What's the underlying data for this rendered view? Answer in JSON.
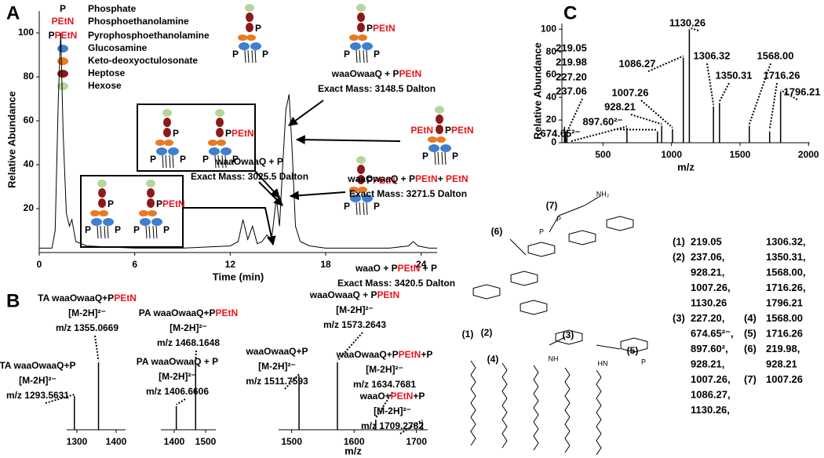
{
  "panel_labels": [
    "A",
    "B",
    "C"
  ],
  "legend": {
    "items": [
      {
        "symbol": [
          {
            "text": "P"
          }
        ],
        "name": "Phosphate"
      },
      {
        "symbol": [
          {
            "text": "PEtN",
            "color": "#e8141e"
          }
        ],
        "name": "Phosphoethanolamine"
      },
      {
        "symbol": [
          {
            "text": "P"
          },
          {
            "text": "PEtN",
            "color": "#e8141e"
          }
        ],
        "name": "Pyrophosphoethanolamine"
      },
      {
        "color": "#3f7fd0",
        "name": "Glucosamine"
      },
      {
        "color": "#e87a20",
        "name": "Keto-deoxyoctulosonate"
      },
      {
        "color": "#8b1a1a",
        "name": "Heptose"
      },
      {
        "color": "#b5d59a",
        "name": "Hexose"
      }
    ]
  },
  "chart_data": [
    {
      "type": "line",
      "color": "#000000",
      "x": [
        0,
        0.8,
        1.0,
        1.2,
        1.35,
        1.5,
        1.7,
        1.9,
        2.05,
        2.3,
        3,
        6,
        9,
        12,
        12.5,
        12.8,
        13.1,
        13.4,
        13.7,
        14,
        14.3,
        14.6,
        14.9,
        15.1,
        15.3,
        15.5,
        15.7,
        15.9,
        16.1,
        16.4,
        17,
        18,
        20,
        22,
        23.2,
        23.5,
        23.8,
        24.5,
        25
      ],
      "values": [
        2,
        2,
        10,
        70,
        100,
        55,
        18,
        12,
        15,
        5,
        3,
        2,
        2,
        3,
        5,
        15,
        6,
        12,
        4,
        5,
        8,
        6,
        25,
        12,
        40,
        65,
        72,
        45,
        12,
        5,
        3,
        2,
        2,
        2,
        3,
        5,
        3,
        2,
        2
      ],
      "xlim": [
        0,
        25
      ],
      "ylim": [
        0,
        110
      ],
      "xticks": [
        0,
        6,
        12,
        18,
        24
      ],
      "yticks": [
        20,
        40,
        60,
        80,
        100
      ],
      "xlabel": "Time (min)",
      "ylabel": "Relative Abundance",
      "annotations": [
        {
          "lines": [
            [
              {
                "text": "waaOwaaQ + P"
              }
            ],
            [
              {
                "text": "Exact Mass: 3025.5 Dalton"
              }
            ]
          ]
        },
        {
          "lines": [
            [
              {
                "text": "waaOwaaQ + P"
              },
              {
                "text": "PEtN",
                "color": "#e8141e"
              }
            ],
            [
              {
                "text": "Exact Mass: 3148.5 Dalton"
              }
            ]
          ]
        },
        {
          "lines": [
            [
              {
                "text": "waaOwaaQ + P"
              },
              {
                "text": "PEtN",
                "color": "#e8141e"
              },
              {
                "text": "+ "
              },
              {
                "text": "PEtN",
                "color": "#e8141e"
              }
            ],
            [
              {
                "text": "Exact Mass: 3271.5 Dalton"
              }
            ]
          ]
        },
        {
          "lines": [
            [
              {
                "text": "waaO + P"
              },
              {
                "text": "PEtN",
                "color": "#e8141e"
              },
              {
                "text": " + P"
              }
            ],
            [
              {
                "text": "Exact Mass: 3420.5 Dalton"
              }
            ]
          ]
        }
      ]
    },
    {
      "type": "spectrum",
      "color": "#000000",
      "x": [
        1293.5631,
        1355.0669
      ],
      "values": [
        50,
        100
      ],
      "xlim": [
        1274,
        1424
      ],
      "xticks": [
        1300,
        1400
      ],
      "annotations": [
        {
          "lines": [
            [
              {
                "text": "TA waaOwaaQ+P"
              }
            ],
            [
              {
                "text": "[M-2H]²⁻"
              }
            ],
            [
              {
                "text": "m/z 1293.5631"
              }
            ]
          ]
        },
        {
          "lines": [
            [
              {
                "text": "TA waaOwaaQ+P"
              },
              {
                "text": "PEtN",
                "color": "#e8141e"
              }
            ],
            [
              {
                "text": "[M-2H]²⁻"
              }
            ],
            [
              {
                "text": "m/z 1355.0669"
              }
            ]
          ]
        }
      ]
    },
    {
      "type": "spectrum",
      "color": "#000000",
      "x": [
        1406.6606,
        1468.1648
      ],
      "values": [
        35,
        100
      ],
      "xlim": [
        1357.5,
        1532.5
      ],
      "xticks": [
        1400,
        1500
      ],
      "annotations": [
        {
          "lines": [
            [
              {
                "text": "PA waaOwaaQ + P"
              }
            ],
            [
              {
                "text": "[M-2H]²⁻"
              }
            ],
            [
              {
                "text": "m/z 1406.6606"
              }
            ]
          ]
        },
        {
          "lines": [
            [
              {
                "text": "PA waaOwaaQ+P"
              },
              {
                "text": "PEtN",
                "color": "#e8141e"
              }
            ],
            [
              {
                "text": "[M-2H]²⁻"
              }
            ],
            [
              {
                "text": "m/z 1468.1648"
              }
            ]
          ]
        }
      ]
    },
    {
      "type": "spectrum",
      "color": "#000000",
      "x": [
        1511.7593,
        1573.2643,
        1634.7681,
        1709.2782
      ],
      "values": [
        80,
        100,
        15,
        12
      ],
      "xlim": [
        1479,
        1718
      ],
      "xticks": [
        1500,
        1600,
        1700
      ],
      "xlabel": "m/z",
      "annotations": [
        {
          "lines": [
            [
              {
                "text": "waaOwaaQ+P"
              }
            ],
            [
              {
                "text": "[M-2H]²⁻"
              }
            ],
            [
              {
                "text": "m/z 1511.7593"
              }
            ]
          ]
        },
        {
          "lines": [
            [
              {
                "text": "waaOwaaQ + P"
              },
              {
                "text": "PEtN",
                "color": "#e8141e"
              }
            ],
            [
              {
                "text": "[M-2H]²⁻"
              }
            ],
            [
              {
                "text": "m/z 1573.2643"
              }
            ]
          ]
        },
        {
          "lines": [
            [
              {
                "text": "waaOwaaQ+P"
              },
              {
                "text": "PEtN",
                "color": "#e8141e"
              },
              {
                "text": "+P"
              }
            ],
            [
              {
                "text": "[M-2H]²⁻"
              }
            ],
            [
              {
                "text": "m/z 1634.7681"
              }
            ]
          ]
        },
        {
          "lines": [
            [
              {
                "text": "waaO+"
              },
              {
                "text": "PEtN",
                "color": "#e8141e"
              },
              {
                "text": "+P"
              }
            ],
            [
              {
                "text": "[M-2H]²⁻"
              }
            ],
            [
              {
                "text": "m/z 1709.2782"
              }
            ]
          ]
        }
      ]
    },
    {
      "type": "spectrum",
      "color": "#000000",
      "x": [
        219.05,
        219.98,
        227.2,
        237.06,
        674.65,
        897.6,
        928.21,
        1007.26,
        1086.27,
        1130.26,
        1306.32,
        1350.31,
        1568.0,
        1716.26,
        1796.21
      ],
      "values": [
        14,
        12,
        10,
        8,
        13,
        10,
        15,
        12,
        75,
        100,
        32,
        35,
        15,
        10,
        45
      ],
      "value_labels": [
        "219.05",
        "219.98",
        "227.20",
        "237.06",
        "674.65²⁻",
        "897.60²⁻",
        "928.21",
        "1007.26",
        "1086.27",
        "1130.26",
        "1306.32",
        "1350.31",
        "1568.00",
        "1716.26",
        "1796.21"
      ],
      "xlim": [
        200,
        2010
      ],
      "ylim": [
        0,
        105
      ],
      "xticks": [
        500,
        1000,
        1500,
        2000
      ],
      "yticks": [
        0,
        20,
        40,
        60,
        80,
        100
      ],
      "xlabel": "m/z",
      "ylabel": "Relative Abundance"
    }
  ],
  "structure": {
    "sites": [
      "(7)",
      "(6)",
      "(1)",
      "(2)",
      "(3)",
      "(4)",
      "(5)"
    ],
    "atoms": [
      {
        "text": "P",
        "color": "#e8141e"
      },
      {
        "text": "NH₂",
        "color": "#e8141e"
      },
      {
        "text": "P"
      },
      {
        "text": "P"
      },
      {
        "text": "NH"
      },
      {
        "text": "HN"
      }
    ]
  },
  "assignments": {
    "rows": [
      [
        "(1)",
        "219.05",
        null,
        "1306.32,"
      ],
      [
        "(2)",
        "237.06,",
        null,
        "1350.31,"
      ],
      [
        null,
        "928.21,",
        null,
        "1568.00,"
      ],
      [
        null,
        "1007.26,",
        null,
        "1716.26,"
      ],
      [
        null,
        "1130.26",
        null,
        "1796.21"
      ],
      [
        "(3)",
        "227.20,",
        "(4)",
        "1568.00"
      ],
      [
        null,
        "674.65²⁻,",
        "(5)",
        "1716.26"
      ],
      [
        null,
        "897.60²,",
        "(6)",
        "219.98,"
      ],
      [
        null,
        "928.21,",
        null,
        "928.21"
      ],
      [
        null,
        "1007.26,",
        "(7)",
        "1007.26"
      ],
      [
        null,
        "1086.27,",
        null,
        null
      ],
      [
        null,
        "1130.26,",
        null,
        null
      ]
    ]
  }
}
